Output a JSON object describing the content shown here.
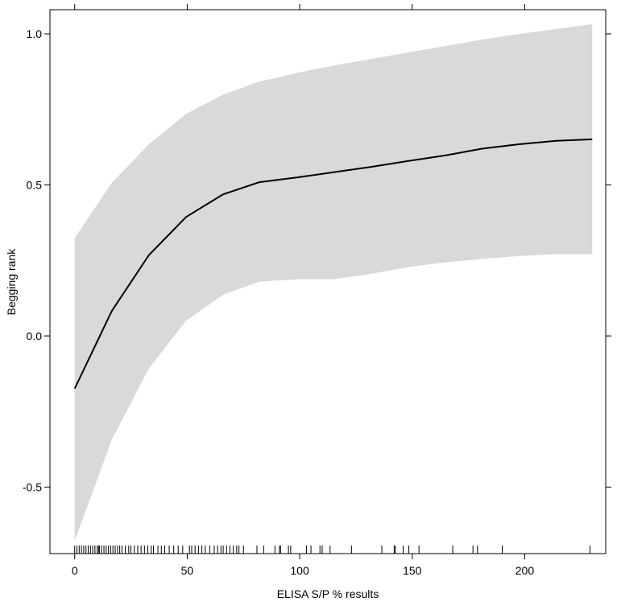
{
  "chart_data": {
    "type": "line",
    "title": "",
    "xlabel": "ELISA S/P % results",
    "ylabel": "Begging rank",
    "xlim": [
      -11,
      236
    ],
    "ylim": [
      -0.72,
      1.08
    ],
    "xticks": [
      0,
      50,
      100,
      150,
      200
    ],
    "xtick_labels": [
      "0",
      "50",
      "100",
      "150",
      "200"
    ],
    "yticks": [
      -0.5,
      0.0,
      0.5,
      1.0
    ],
    "ytick_labels": [
      "-0.5",
      "0.0",
      "0.5",
      "1.0"
    ],
    "grid": false,
    "colors": {
      "line": "#000000",
      "band": "#d9d9d9"
    },
    "x": [
      0,
      16.5,
      33,
      49.5,
      66,
      82,
      99,
      115,
      132,
      148,
      165,
      181,
      198,
      214,
      230
    ],
    "fit": [
      -0.174,
      0.083,
      0.268,
      0.394,
      0.469,
      0.509,
      0.525,
      0.542,
      0.56,
      0.579,
      0.598,
      0.62,
      0.635,
      0.646,
      0.651
    ],
    "upper": [
      0.324,
      0.507,
      0.635,
      0.735,
      0.799,
      0.842,
      0.871,
      0.895,
      0.917,
      0.938,
      0.96,
      0.981,
      1.0,
      1.016,
      1.032
    ],
    "lower": [
      -0.678,
      -0.343,
      -0.107,
      0.051,
      0.137,
      0.18,
      0.188,
      0.188,
      0.206,
      0.228,
      0.244,
      0.255,
      0.265,
      0.271,
      0.271
    ],
    "rug": [
      0,
      1,
      2,
      3,
      4,
      5,
      6,
      7,
      8,
      9,
      10,
      10.6,
      11,
      12,
      13,
      14,
      15,
      16,
      17,
      18,
      19,
      20,
      21,
      22.5,
      24,
      25,
      26.5,
      28,
      29.5,
      31,
      32.5,
      34,
      35,
      37,
      38.5,
      40,
      42,
      44,
      46,
      48,
      51,
      52,
      53.5,
      55,
      56.5,
      58,
      60,
      62,
      63.5,
      65,
      66,
      67.5,
      69,
      70.5,
      72,
      73,
      75,
      81,
      84,
      89,
      91,
      91.5,
      95,
      96,
      103,
      105,
      109,
      110,
      113.5,
      123,
      136.5,
      142,
      142.5,
      146,
      148.5,
      153,
      168,
      177,
      179,
      190,
      229
    ]
  }
}
